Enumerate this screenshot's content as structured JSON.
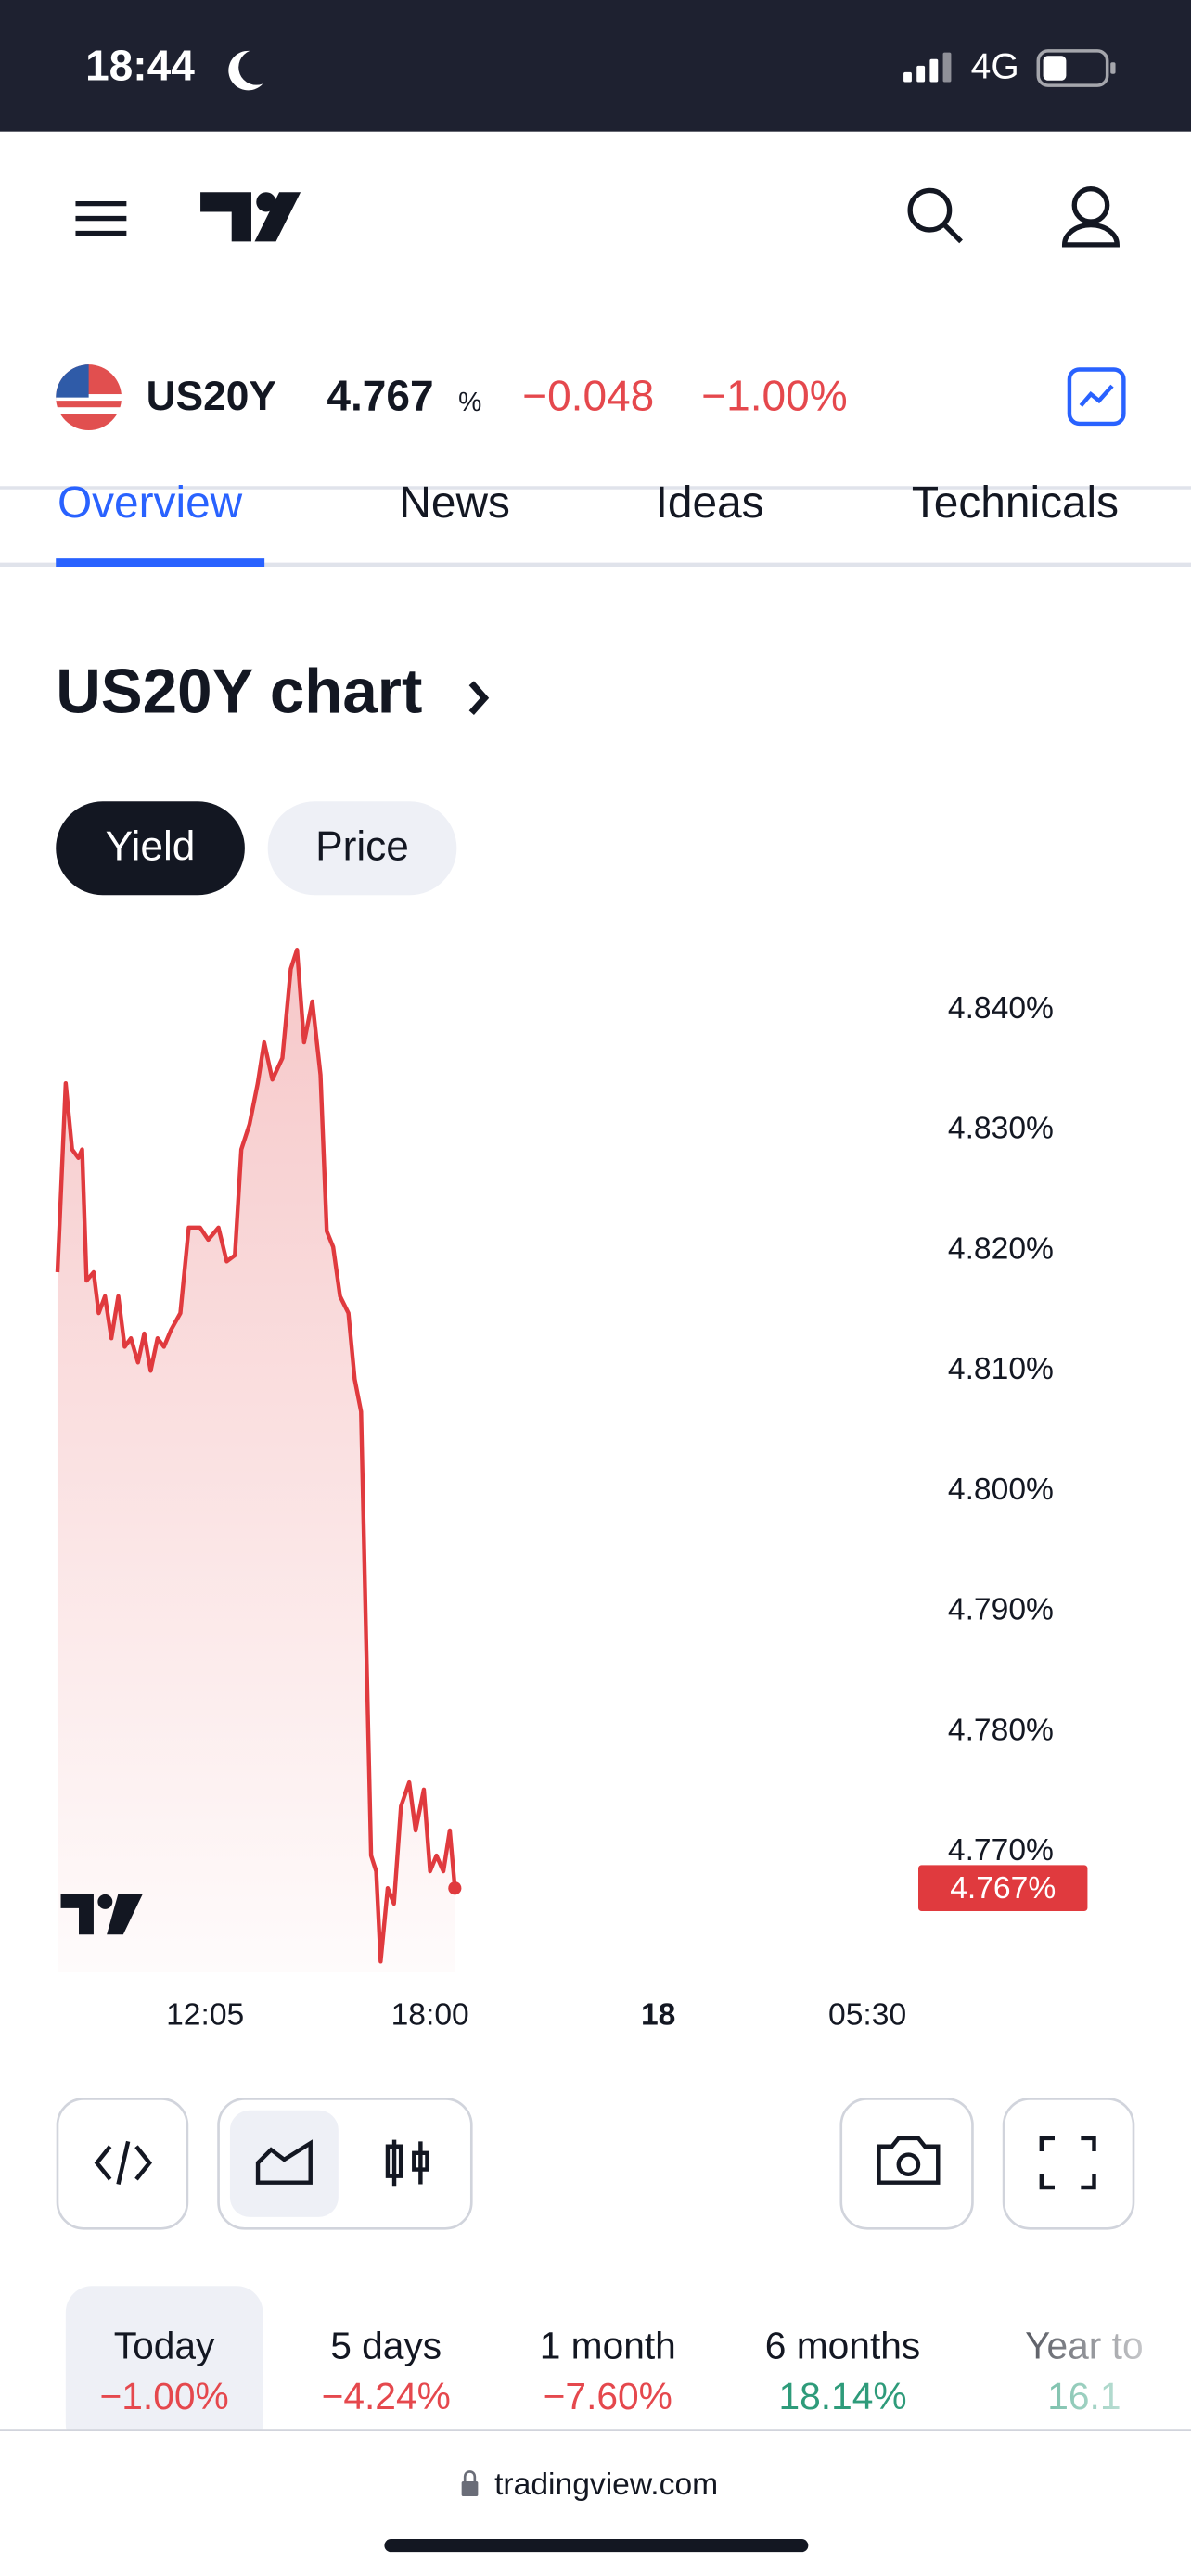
{
  "status_bar": {
    "time": "18:44",
    "network": "4G"
  },
  "symbol_bar": {
    "symbol": "US20Y",
    "price": "4.767",
    "unit": "%",
    "change": "−0.048",
    "change_percent": "−1.00%"
  },
  "tabs": [
    "Overview",
    "News",
    "Ideas",
    "Technicals"
  ],
  "chart_section": {
    "title": "US20Y chart",
    "toggles": [
      "Yield",
      "Price"
    ]
  },
  "chart_data": {
    "type": "line",
    "color": "#e03a3e",
    "x": [
      492,
      505,
      515,
      525,
      531,
      538,
      549,
      557,
      567,
      577,
      588,
      598,
      608,
      619,
      629,
      639,
      650,
      660,
      671,
      686,
      699,
      717,
      730,
      746,
      759,
      772,
      782,
      795,
      808,
      818,
      831,
      847,
      860,
      870,
      881,
      894,
      907,
      917,
      927,
      938,
      951,
      961,
      971,
      979,
      987,
      995,
      1002,
      1013,
      1023,
      1034,
      1047,
      1057,
      1070,
      1080,
      1090,
      1101,
      1111,
      1119
    ],
    "series": [
      {
        "name": "US20Y",
        "color": "#e03a3e",
        "values": [
          4.8182,
          4.8339,
          4.8284,
          4.8277,
          4.8284,
          4.8175,
          4.8182,
          4.8148,
          4.8162,
          4.8127,
          4.8162,
          4.812,
          4.8127,
          4.8107,
          4.8131,
          4.81,
          4.8127,
          4.812,
          4.8134,
          4.8148,
          4.8219,
          4.8219,
          4.8209,
          4.8219,
          4.8191,
          4.8196,
          4.8284,
          4.8305,
          4.8339,
          4.8373,
          4.8342,
          4.836,
          4.8434,
          4.845,
          4.8373,
          4.8407,
          4.8346,
          4.8216,
          4.8203,
          4.8162,
          4.8148,
          4.8093,
          4.8066,
          4.7875,
          4.7697,
          4.7684,
          4.7609,
          4.767,
          4.7657,
          4.7738,
          4.7758,
          4.7718,
          4.7752,
          4.7684,
          4.7697,
          4.7684,
          4.7718,
          4.767
        ]
      }
    ],
    "xlim": [
      492,
      1840
    ],
    "xticks": [
      {
        "value": 725,
        "label": "12:05"
      },
      {
        "value": 1080,
        "label": "18:00"
      },
      {
        "value": 1440,
        "label": "18"
      },
      {
        "value": 1770,
        "label": "05:30"
      }
    ],
    "ylim": [
      4.76,
      4.846
    ],
    "yticks": [
      {
        "value": 4.84,
        "label": "4.840%"
      },
      {
        "value": 4.83,
        "label": "4.830%"
      },
      {
        "value": 4.82,
        "label": "4.820%"
      },
      {
        "value": 4.81,
        "label": "4.810%"
      },
      {
        "value": 4.8,
        "label": "4.800%"
      },
      {
        "value": 4.79,
        "label": "4.790%"
      },
      {
        "value": 4.78,
        "label": "4.780%"
      },
      {
        "value": 4.77,
        "label": "4.770%"
      }
    ],
    "last_value": {
      "value": 4.767,
      "label": "4.767%"
    },
    "grid": false
  },
  "periods": [
    {
      "label": "Today",
      "change": "−1.00%",
      "trend": "down"
    },
    {
      "label": "5 days",
      "change": "−4.24%",
      "trend": "down"
    },
    {
      "label": "1 month",
      "change": "−7.60%",
      "trend": "down"
    },
    {
      "label": "6 months",
      "change": "18.14%",
      "trend": "up"
    },
    {
      "label": "Year to",
      "change": "16.1",
      "trend": "up"
    }
  ],
  "footer": {
    "domain": "tradingview.com"
  }
}
